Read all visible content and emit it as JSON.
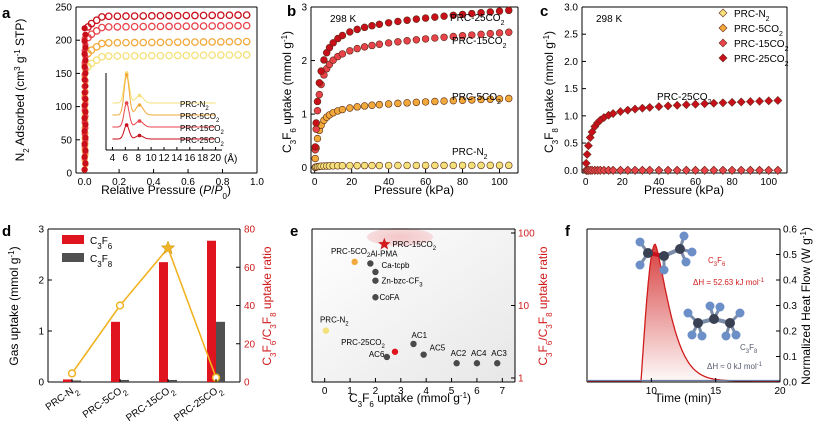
{
  "panels": {
    "a": {
      "letter": "a"
    },
    "b": {
      "letter": "b"
    },
    "c": {
      "letter": "c"
    },
    "d": {
      "letter": "d"
    },
    "e": {
      "letter": "e"
    },
    "f": {
      "letter": "f"
    }
  },
  "colors": {
    "n2": "#f4e17a",
    "c5": "#f2a93b",
    "c15": "#e8434b",
    "c25": "#c80f1a",
    "bar_c3f6": "#e0141f",
    "bar_c3f8": "#505050",
    "ratio_line": "#f0b323",
    "heat": "#d01c1c"
  },
  "chart_data": [
    {
      "id": "a",
      "type": "scatter",
      "title": "",
      "xlabel": "Relative Pressure (P/P0)",
      "ylabel": "N2 Adsorbed (cm3 g-1 STP)",
      "xlim": [
        -0.05,
        1.0
      ],
      "ylim": [
        0,
        250
      ],
      "xticks": [
        "0.0",
        "0.2",
        "0.4",
        "0.6",
        "0.8",
        "1.0"
      ],
      "yticks": [
        "0",
        "50",
        "100",
        "150",
        "200",
        "250"
      ],
      "x": [
        0.14,
        0.19,
        0.24,
        0.29,
        0.34,
        0.39,
        0.44,
        0.49,
        0.54,
        0.59,
        0.64,
        0.69,
        0.74,
        0.79,
        0.84,
        0.89,
        0.94
      ],
      "series": [
        {
          "name": "PRC-N2",
          "plateau": 178
        },
        {
          "name": "PRC-5CO2",
          "plateau": 198
        },
        {
          "name": "PRC-15CO2",
          "plateau": 222
        },
        {
          "name": "PRC-25CO2",
          "plateau": 238
        }
      ],
      "inset": {
        "xlabel": "(Å)",
        "xticks": [
          "4",
          "6",
          "8",
          "10",
          "12",
          "14",
          "16",
          "18",
          "20"
        ],
        "labels": [
          "PRC-N2",
          "PRC-5CO2",
          "PRC-15CO2",
          "PRC-25CO2"
        ]
      }
    },
    {
      "id": "b",
      "type": "scatter",
      "annotation": "298 K",
      "xlabel": "Pressure (kPa)",
      "ylabel": "C3F6 uptake (mmol g-1)",
      "xlim": [
        -2,
        110
      ],
      "ylim": [
        -0.1,
        3.0
      ],
      "xticks": [
        "0",
        "20",
        "40",
        "60",
        "80",
        "100"
      ],
      "yticks": [
        "0",
        "1",
        "2",
        "3"
      ],
      "x": [
        0.3,
        0.8,
        1.5,
        2.5,
        3.5,
        5,
        6.5,
        8,
        10,
        12.5,
        15,
        19,
        23,
        27,
        31,
        35,
        40,
        45,
        50,
        55,
        60,
        65,
        70,
        75,
        80,
        85,
        90,
        95,
        100,
        105
      ],
      "series": [
        {
          "name": "PRC-N2",
          "qmax": 0.04
        },
        {
          "name": "PRC-5CO2",
          "qmax": 1.2
        },
        {
          "name": "PRC-15CO2",
          "qmax": 2.35
        },
        {
          "name": "PRC-25CO2",
          "qmax": 2.73
        }
      ]
    },
    {
      "id": "c",
      "type": "scatter",
      "annotation": "298 K",
      "xlabel": "Pressure (kPa)",
      "ylabel": "C3F8 uptake (mmol g-1)",
      "xlim": [
        -2,
        110
      ],
      "ylim": [
        -0.05,
        3.0
      ],
      "xticks": [
        "0",
        "20",
        "40",
        "60",
        "80",
        "100"
      ],
      "yticks": [
        "0.0",
        "0.5",
        "1.0",
        "1.5",
        "2.0",
        "2.5",
        "3.0"
      ],
      "x": [
        0.3,
        0.8,
        1.5,
        2.5,
        3.5,
        5,
        6.5,
        8,
        10,
        12.5,
        15,
        19,
        23,
        27,
        31,
        35,
        40,
        45,
        50,
        55,
        60,
        65,
        70,
        75,
        80,
        85,
        90,
        95,
        100,
        105
      ],
      "series": [
        {
          "name": "PRC-N2",
          "qmax": 0.0
        },
        {
          "name": "PRC-5CO2",
          "qmax": 0.0
        },
        {
          "name": "PRC-15CO2",
          "qmax": 0.0
        },
        {
          "name": "PRC-25CO2",
          "qmax": 1.2
        }
      ],
      "legend": [
        "PRC-N2",
        "PRC-5CO2",
        "PRC-15CO2",
        "PRC-25CO2"
      ],
      "curve_label": "PRC-25CO2"
    },
    {
      "id": "d",
      "type": "bar",
      "categories": [
        "PRC-N2",
        "PRC-5CO2",
        "PRC-15CO2",
        "PRC-25CO2"
      ],
      "ylabel": "Gas uptake (mmol g-1)",
      "y2label": "C3F6/C3F8 uptake ratio",
      "ylim": [
        0,
        3
      ],
      "y2lim": [
        0,
        80
      ],
      "yticks": [
        "0",
        "1",
        "2",
        "3"
      ],
      "y2ticks": [
        "0",
        "20",
        "40",
        "60",
        "80"
      ],
      "series": [
        {
          "name": "C3F6",
          "values": [
            0.05,
            1.18,
            2.35,
            2.77
          ]
        },
        {
          "name": "C3F8",
          "values": [
            0.03,
            0.04,
            0.04,
            1.18
          ]
        }
      ],
      "ratio": [
        4.5,
        40,
        70,
        2.3
      ]
    },
    {
      "id": "e",
      "type": "scatter",
      "xlabel": "C3F6 uptake (mmol g-1)",
      "ylabel": "C3F6/C3F8 uptake ratio",
      "xlim": [
        -0.5,
        7.5
      ],
      "ylim_log": [
        1,
        100
      ],
      "xticks": [
        "0",
        "1",
        "2",
        "3",
        "4",
        "5",
        "6",
        "7"
      ],
      "yticks": [
        "1",
        "10",
        "100"
      ],
      "points": [
        {
          "name": "PRC-15CO2",
          "x": 2.35,
          "y": 70
        },
        {
          "name": "PRC-5CO2",
          "x": 1.18,
          "y": 40
        },
        {
          "name": "Al-PMA",
          "x": 1.8,
          "y": 38
        },
        {
          "name": "Ca-tcpb",
          "x": 2.0,
          "y": 29
        },
        {
          "name": "Zn-bzc-CF3",
          "x": 2.0,
          "y": 22
        },
        {
          "name": "CoFA",
          "x": 2.0,
          "y": 13
        },
        {
          "name": "PRC-N2",
          "x": 0.05,
          "y": 4.5
        },
        {
          "name": "AC1",
          "x": 3.5,
          "y": 2.95
        },
        {
          "name": "PRC-25CO2",
          "x": 2.77,
          "y": 2.3
        },
        {
          "name": "AC6",
          "x": 2.45,
          "y": 1.95
        },
        {
          "name": "AC5",
          "x": 3.9,
          "y": 2.1
        },
        {
          "name": "AC2",
          "x": 5.2,
          "y": 1.6
        },
        {
          "name": "AC4",
          "x": 6.0,
          "y": 1.6
        },
        {
          "name": "AC3",
          "x": 6.8,
          "y": 1.6
        }
      ]
    },
    {
      "id": "f",
      "type": "line",
      "xlabel": "Time (min)",
      "ylabel": "Normalized Heat Flow (W g-1)",
      "xlim": [
        5,
        20
      ],
      "ylim": [
        0,
        0.6
      ],
      "xticks": [
        "10",
        "15",
        "20"
      ],
      "yticks": [
        "0.0",
        "0.1",
        "0.2",
        "0.3",
        "0.4",
        "0.5",
        "0.6"
      ],
      "series": [
        {
          "name": "C3F6",
          "peak_time": 10.3,
          "peak_value": 0.54,
          "annotation": "ΔH = 52.63 kJ mol-1"
        },
        {
          "name": "C3F8",
          "peak_value": 0.0,
          "annotation": "ΔH ≈ 0 kJ mol-1"
        }
      ]
    }
  ]
}
